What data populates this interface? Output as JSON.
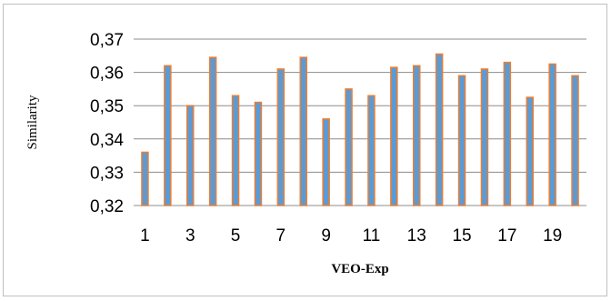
{
  "chart_data": {
    "type": "bar",
    "title": "",
    "xlabel": "VEO-Exp",
    "ylabel": "Similarity",
    "categories": [
      "1",
      "2",
      "3",
      "4",
      "5",
      "6",
      "7",
      "8",
      "9",
      "10",
      "11",
      "12",
      "13",
      "14",
      "15",
      "16",
      "17",
      "18",
      "19",
      "20"
    ],
    "x_tick_labels": [
      "1",
      "3",
      "5",
      "7",
      "9",
      "11",
      "13",
      "15",
      "17",
      "19"
    ],
    "y_tick_labels": [
      "0,32",
      "0,33",
      "0,34",
      "0,35",
      "0,36",
      "0,37"
    ],
    "y_ticks": [
      0.32,
      0.33,
      0.34,
      0.35,
      0.36,
      0.37
    ],
    "ylim": [
      0.32,
      0.37
    ],
    "grid": "horizontal",
    "legend": "none",
    "series": [
      {
        "values": [
          0.336,
          0.362,
          0.35,
          0.3645,
          0.353,
          0.351,
          0.361,
          0.3645,
          0.346,
          0.355,
          0.353,
          0.3615,
          0.362,
          0.3655,
          0.359,
          0.361,
          0.363,
          0.3525,
          0.3625,
          0.359
        ]
      }
    ],
    "colors": {
      "bar_fill": "#5b9bd5",
      "bar_edge": "#ed7d31",
      "grid": "#8c8c8c",
      "axis": "#8c8c8c"
    }
  }
}
